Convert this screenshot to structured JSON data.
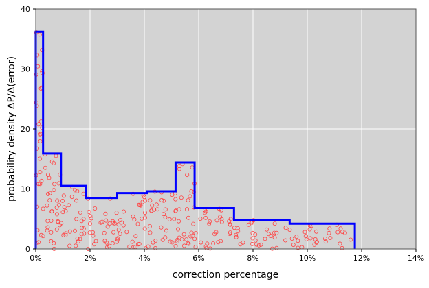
{
  "chart_data": {
    "type": "step-histogram-with-scatter",
    "xlabel": "correction percentage",
    "ylabel": "probability density ΔP/Δ(error)",
    "xlim": [
      0,
      14
    ],
    "ylim": [
      0,
      40
    ],
    "x_ticks": [
      0,
      2,
      4,
      6,
      8,
      10,
      12,
      14
    ],
    "x_tick_labels": [
      "0%",
      "2%",
      "4%",
      "6%",
      "8%",
      "10%",
      "12%",
      "14%"
    ],
    "y_ticks": [
      0,
      10,
      20,
      30,
      40
    ],
    "y_tick_labels": [
      "0",
      "10",
      "20",
      "30",
      "40"
    ],
    "grid": true,
    "plot_background": "#d3d3d3",
    "histogram": {
      "color": "#0000ff",
      "bin_edges": [
        0,
        0.27,
        0.93,
        1.86,
        3.0,
        4.1,
        5.15,
        5.85,
        7.3,
        9.35,
        11.75
      ],
      "densities": [
        36.2,
        15.9,
        10.5,
        8.5,
        9.3,
        9.6,
        14.4,
        6.8,
        4.8,
        4.2
      ]
    },
    "scatter": {
      "color": "#ff4444",
      "marker": "open-circle",
      "description_of_distribution": "one point per sample; x = correction percentage, y spread uniformly under histogram height",
      "seed": 7
    }
  }
}
